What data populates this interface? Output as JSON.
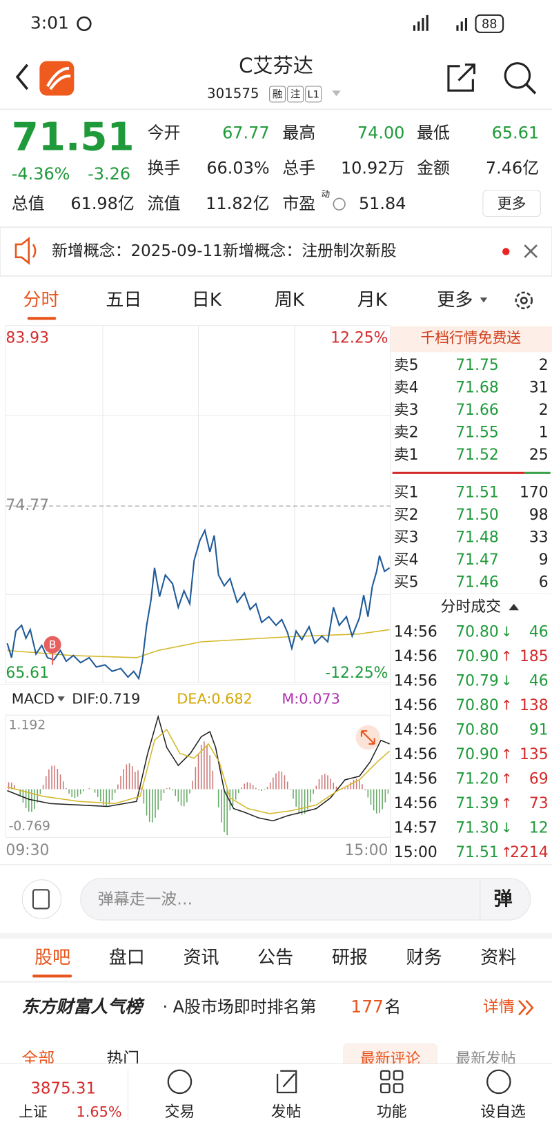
{
  "status_bar": {
    "time": "3:01",
    "battery": "88"
  },
  "header": {
    "title": "C艾芬达",
    "code": "301575",
    "tags": [
      "融",
      "注",
      "L1"
    ]
  },
  "quote": {
    "price": "71.51",
    "change_pct": "-4.36%",
    "change": "-3.26",
    "stats": [
      {
        "label": "今开",
        "value": "67.77"
      },
      {
        "label": "最高",
        "value": "74.00"
      },
      {
        "label": "最低",
        "value": "65.61"
      },
      {
        "label": "换手",
        "value": "66.03%"
      },
      {
        "label": "总手",
        "value": "10.92万"
      },
      {
        "label": "金额",
        "value": "7.46亿"
      },
      {
        "label": "总值",
        "value": "61.98亿"
      },
      {
        "label": "流值",
        "value": "11.82亿"
      },
      {
        "label": "市盈",
        "value": "51.84"
      }
    ],
    "pe_mark": "动",
    "more": "更多"
  },
  "notice": {
    "text": "新增概念：2025-09-11新增概念：注册制次新股"
  },
  "tabs": [
    "分时",
    "五日",
    "日K",
    "周K",
    "月K",
    "更多"
  ],
  "chart": {
    "y_max": "83.93",
    "pct_max": "12.25%",
    "ref": "74.77",
    "y_min": "65.61",
    "pct_min": "-12.25%",
    "start": "09:30",
    "end": "15:00",
    "marker": "B"
  },
  "macd": {
    "label": "MACD",
    "dif": "DIF:0.719",
    "dea": "DEA:0.682",
    "m": "M:0.073",
    "max": "1.192",
    "min": "-0.769"
  },
  "order_book": {
    "banner": "千档行情免费送",
    "asks": [
      {
        "label": "卖5",
        "price": "71.75",
        "qty": "2"
      },
      {
        "label": "卖4",
        "price": "71.68",
        "qty": "31"
      },
      {
        "label": "卖3",
        "price": "71.66",
        "qty": "2"
      },
      {
        "label": "卖2",
        "price": "71.55",
        "qty": "1"
      },
      {
        "label": "卖1",
        "price": "71.52",
        "qty": "25"
      }
    ],
    "bids": [
      {
        "label": "买1",
        "price": "71.51",
        "qty": "170"
      },
      {
        "label": "买2",
        "price": "71.50",
        "qty": "98"
      },
      {
        "label": "买3",
        "price": "71.48",
        "qty": "33"
      },
      {
        "label": "买4",
        "price": "71.47",
        "qty": "9"
      },
      {
        "label": "买5",
        "price": "71.46",
        "qty": "6"
      }
    ]
  },
  "trades": {
    "title": "分时成交",
    "rows": [
      {
        "time": "14:56",
        "price": "70.80",
        "dir": "↓",
        "qty": "46"
      },
      {
        "time": "14:56",
        "price": "70.90",
        "dir": "↑",
        "qty": "185"
      },
      {
        "time": "14:56",
        "price": "70.79",
        "dir": "↓",
        "qty": "46"
      },
      {
        "time": "14:56",
        "price": "70.80",
        "dir": "↑",
        "qty": "138"
      },
      {
        "time": "14:56",
        "price": "70.80",
        "qty": "91"
      },
      {
        "time": "14:56",
        "price": "70.90",
        "dir": "↑",
        "qty": "135"
      },
      {
        "time": "14:56",
        "price": "71.20",
        "dir": "↑",
        "qty": "69"
      },
      {
        "time": "14:56",
        "price": "71.39",
        "dir": "↑",
        "qty": "73"
      },
      {
        "time": "14:57",
        "price": "71.30",
        "dir": "↓",
        "qty": "12"
      },
      {
        "time": "15:00",
        "price": "71.51",
        "dir": "↑",
        "qty": "2214"
      }
    ]
  },
  "comment_bar": {
    "placeholder": "弹幕走一波…",
    "button": "弹"
  },
  "section_tabs": [
    "股吧",
    "盘口",
    "资讯",
    "公告",
    "研报",
    "财务",
    "资料"
  ],
  "ranking": {
    "brand": "东方财富人气榜",
    "text": "· A股市场即时排名第",
    "rank": "177",
    "suffix": "名",
    "detail": "详情"
  },
  "filters": [
    "全部",
    "热门"
  ],
  "sorts": [
    "最新评论",
    "最新发帖"
  ],
  "bottom_nav": {
    "index_value": "3875.31",
    "index_name": "上证",
    "index_change": "1.65%",
    "items": [
      "交易",
      "发帖",
      "功能",
      "设自选"
    ]
  }
}
